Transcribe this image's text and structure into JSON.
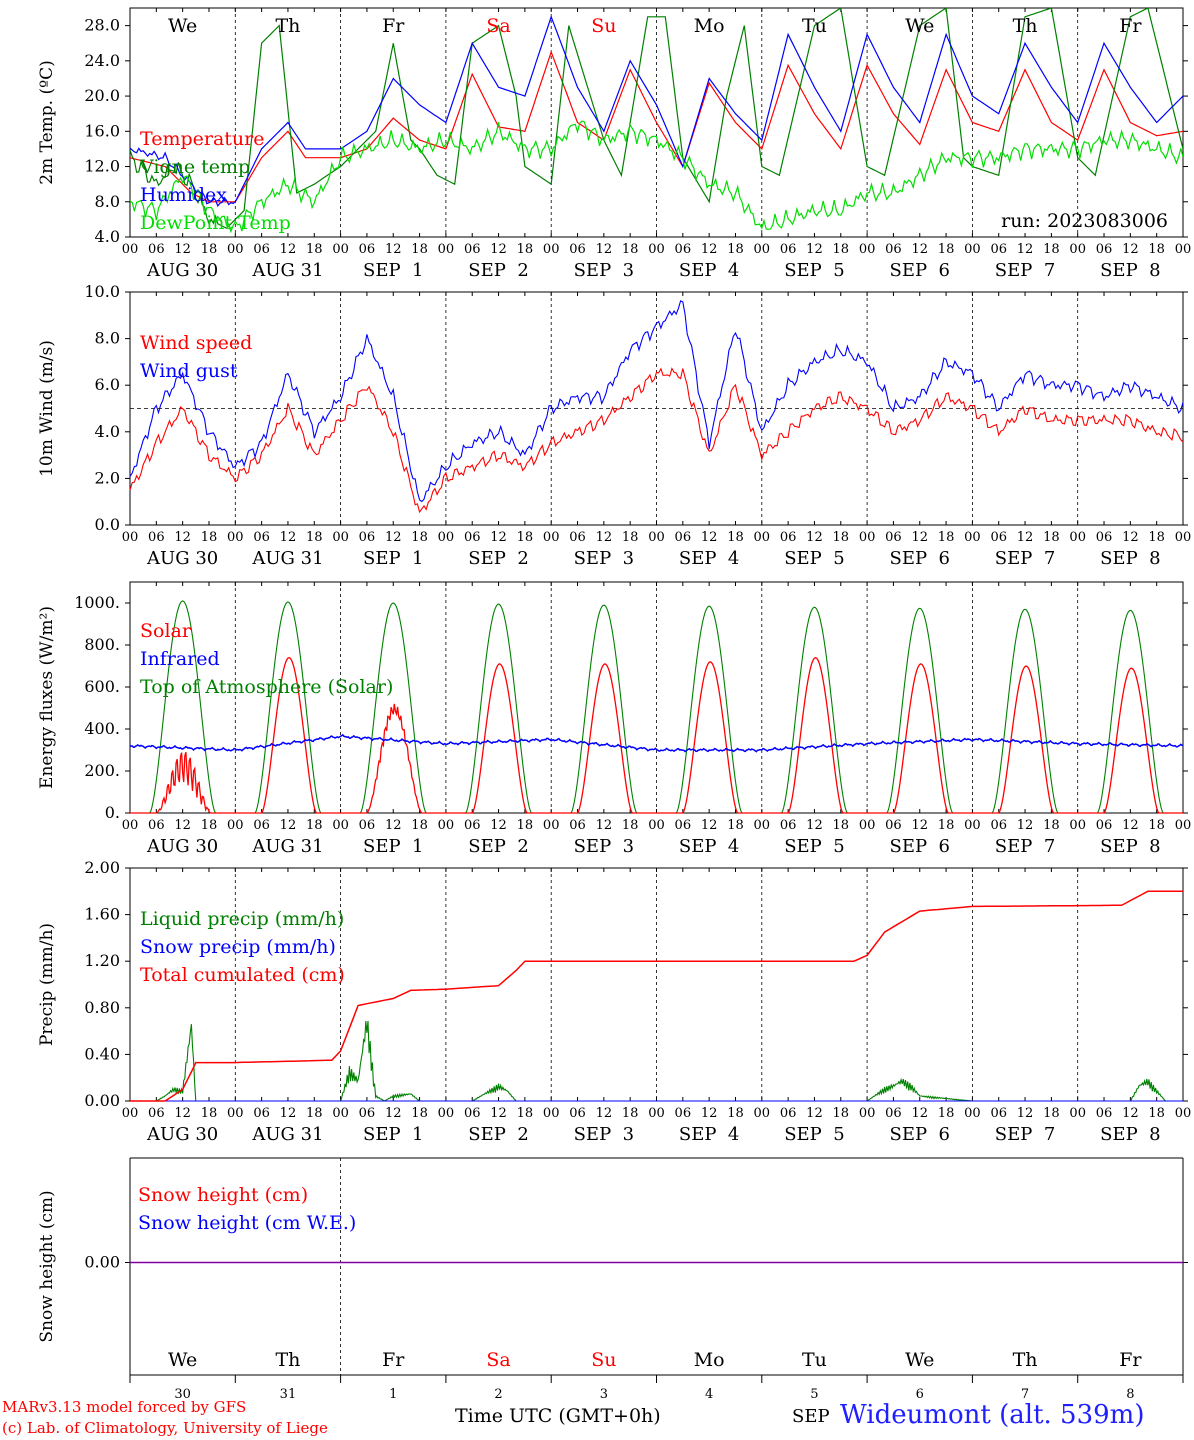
{
  "footer": {
    "model": "MARv3.13 model forced by GFS",
    "copyright": "(c) Lab. of Climatology, University of Liege",
    "xlabel": "Time UTC (GMT+0h)",
    "month": "SEP",
    "station": "Wideumont (alt. 539m)"
  },
  "run_label": "run: 2023083006",
  "hour_ticks": [
    "00",
    "06",
    "12",
    "18"
  ],
  "date_labels": [
    "AUG 30",
    "AUG 31",
    "SEP  1",
    "SEP  2",
    "SEP  3",
    "SEP  4",
    "SEP  5",
    "SEP  6",
    "SEP  7",
    "SEP  8"
  ],
  "day_names": [
    "We",
    "Th",
    "Fr",
    "Sa",
    "Su",
    "Mo",
    "Tu",
    "We",
    "Th",
    "Fr"
  ],
  "day_name_colors": [
    "#000000",
    "#000000",
    "#000000",
    "#ff0000",
    "#ff0000",
    "#000000",
    "#000000",
    "#000000",
    "#000000",
    "#000000"
  ],
  "day_numbers": [
    "30",
    "31",
    "1",
    "2",
    "3",
    "4",
    "5",
    "6",
    "7",
    "8"
  ],
  "colors": {
    "red": "#ff0000",
    "green": "#008000",
    "blue": "#0000ff",
    "lightgreen": "#00dd00",
    "purple": "#8000a0"
  },
  "chart_data": [
    {
      "type": "line",
      "ylabel": "2m Temp. (ºC)",
      "ylim": [
        4.0,
        30.0
      ],
      "yticks": [
        "4.0",
        "8.0",
        "12.0",
        "16.0",
        "20.0",
        "24.0",
        "28.0"
      ],
      "x_unit": "hours since AUG 30 00 UTC",
      "series": [
        {
          "name": "Temperature",
          "color": "red",
          "x": [
            0,
            8,
            14,
            18,
            24,
            30,
            36,
            40,
            48,
            54,
            60,
            66,
            72,
            78,
            84,
            90,
            96,
            102,
            108,
            114,
            120,
            126,
            132,
            138,
            144,
            150,
            156,
            162,
            168,
            174,
            180,
            186,
            192,
            198,
            204,
            210,
            216,
            222,
            228,
            234,
            240
          ],
          "values": [
            13,
            12,
            9,
            8,
            8,
            13,
            16,
            13,
            13,
            14,
            17.5,
            15,
            14,
            22.5,
            16.5,
            16,
            25,
            17,
            15,
            23,
            17,
            12,
            21.5,
            17,
            14,
            23.5,
            18,
            14,
            23.5,
            18,
            14.5,
            23,
            17,
            16,
            23,
            17,
            15,
            23,
            17,
            15.5,
            16
          ]
        },
        {
          "name": "Vigne temp",
          "color": "green",
          "x": [
            0,
            6,
            10,
            14,
            18,
            22,
            26,
            30,
            34,
            38,
            42,
            48,
            50,
            56,
            60,
            64,
            66,
            70,
            74,
            78,
            84,
            88,
            90,
            96,
            100,
            108,
            112,
            118,
            122,
            126,
            132,
            136,
            140,
            144,
            148,
            156,
            162,
            168,
            172,
            180,
            186,
            190,
            192,
            198,
            204,
            210,
            216,
            220,
            228,
            232,
            240
          ],
          "values": [
            13,
            10,
            12,
            10,
            6,
            5,
            7,
            26,
            28,
            9,
            10,
            12,
            13,
            16,
            26,
            15,
            14,
            11,
            10,
            26,
            28,
            20,
            12,
            10,
            28,
            15,
            11,
            29,
            29,
            13,
            8,
            20,
            28,
            12,
            11,
            28,
            30,
            12,
            11,
            28,
            30,
            13,
            12,
            11,
            29,
            30,
            13,
            11,
            29,
            30,
            14
          ]
        },
        {
          "name": "Humidex",
          "color": "blue",
          "x": [
            0,
            8,
            14,
            18,
            24,
            30,
            36,
            40,
            48,
            54,
            60,
            66,
            72,
            78,
            84,
            90,
            96,
            102,
            108,
            114,
            120,
            126,
            132,
            138,
            144,
            150,
            156,
            162,
            168,
            174,
            180,
            186,
            192,
            198,
            204,
            210,
            216,
            222,
            228,
            234,
            240
          ],
          "values": [
            14,
            13,
            10,
            8,
            8,
            14,
            17,
            14,
            14,
            16,
            22,
            19,
            17,
            26,
            21,
            20,
            29,
            21,
            16,
            24,
            19,
            12,
            22,
            18,
            15,
            27,
            21,
            16,
            27,
            21,
            17,
            27,
            20,
            18,
            26,
            21,
            17,
            26,
            21,
            17,
            20
          ]
        },
        {
          "name": "DewPoint Temp",
          "color": "lightgreen",
          "x": [
            0,
            6,
            12,
            18,
            24,
            30,
            36,
            42,
            48,
            54,
            60,
            66,
            72,
            78,
            84,
            90,
            96,
            102,
            108,
            114,
            120,
            126,
            132,
            138,
            144,
            150,
            156,
            162,
            168,
            174,
            180,
            186,
            192,
            198,
            204,
            210,
            216,
            222,
            228,
            234,
            240
          ],
          "values": [
            8,
            7,
            11,
            7,
            5,
            8,
            10,
            8,
            13,
            14,
            15,
            14,
            15,
            14,
            16,
            14,
            14,
            17,
            15,
            16,
            15,
            13,
            10,
            9,
            5,
            6,
            7,
            7,
            9,
            9,
            11,
            13,
            13,
            13,
            14,
            14,
            14,
            15,
            15,
            14,
            13
          ]
        }
      ]
    },
    {
      "type": "line",
      "ylabel": "10m Wind (m/s)",
      "ylim": [
        0.0,
        10.0
      ],
      "yticks": [
        "0.0",
        "2.0",
        "4.0",
        "6.0",
        "8.0",
        "10.0"
      ],
      "reference_line": 5.0,
      "x_unit": "hours since AUG 30 00 UTC",
      "series": [
        {
          "name": "Wind speed",
          "color": "red",
          "x": [
            0,
            6,
            12,
            18,
            24,
            30,
            36,
            42,
            48,
            54,
            60,
            66,
            72,
            78,
            84,
            90,
            96,
            102,
            108,
            114,
            120,
            126,
            132,
            138,
            144,
            150,
            156,
            162,
            168,
            174,
            180,
            186,
            192,
            198,
            204,
            210,
            216,
            222,
            228,
            234,
            240
          ],
          "values": [
            1.5,
            3.5,
            5.0,
            3.0,
            2.0,
            3.0,
            5.0,
            3.0,
            4.5,
            6.0,
            4.0,
            0.5,
            2.0,
            2.5,
            3.0,
            2.5,
            3.5,
            4.0,
            4.5,
            5.5,
            6.5,
            6.5,
            3.0,
            6.0,
            3.0,
            4.0,
            5.0,
            5.5,
            5.0,
            4.0,
            4.5,
            5.5,
            5.0,
            4.0,
            5.0,
            4.5,
            4.5,
            4.5,
            4.5,
            4.0,
            3.8
          ]
        },
        {
          "name": "Wind gust",
          "color": "blue",
          "x": [
            0,
            6,
            12,
            18,
            24,
            30,
            36,
            42,
            48,
            54,
            60,
            66,
            72,
            78,
            84,
            90,
            96,
            102,
            108,
            114,
            120,
            126,
            132,
            138,
            144,
            150,
            156,
            162,
            168,
            174,
            180,
            186,
            192,
            198,
            204,
            210,
            216,
            222,
            228,
            234,
            240
          ],
          "values": [
            2.0,
            5.0,
            6.5,
            4.0,
            2.5,
            3.5,
            6.5,
            4.0,
            5.5,
            8.0,
            5.5,
            1.0,
            2.5,
            3.5,
            4.0,
            3.0,
            5.0,
            5.5,
            5.5,
            7.5,
            8.5,
            9.5,
            3.5,
            8.5,
            4.0,
            6.0,
            7.0,
            7.5,
            7.0,
            5.0,
            5.5,
            7.0,
            6.5,
            5.0,
            6.5,
            6.0,
            6.0,
            5.5,
            6.0,
            5.5,
            5.0
          ]
        }
      ]
    },
    {
      "type": "line",
      "ylabel": "Energy fluxes (W/m²)",
      "ylim": [
        0,
        1100
      ],
      "yticks": [
        "0.",
        "200.",
        "400.",
        "600.",
        "800.",
        "1000."
      ],
      "x_unit": "hours since AUG 30 00 UTC",
      "daily_peaks": {
        "solar": [
          300,
          740,
          520,
          710,
          710,
          720,
          740,
          710,
          700,
          690
        ],
        "top_of_atmosphere": [
          1010,
          1005,
          1000,
          995,
          990,
          985,
          980,
          975,
          970,
          965
        ],
        "infrared_mean": [
          320,
          300,
          365,
          330,
          350,
          300,
          300,
          330,
          350,
          330
        ]
      },
      "series": [
        {
          "name": "Solar",
          "color": "red"
        },
        {
          "name": "Infrared",
          "color": "blue"
        },
        {
          "name": "Top of Atmosphere (Solar)",
          "color": "green"
        }
      ]
    },
    {
      "type": "line",
      "ylabel": "Precip (mm/h)",
      "ylim": [
        0.0,
        2.0
      ],
      "yticks": [
        "0.00",
        "0.40",
        "0.80",
        "1.20",
        "1.60",
        "2.00"
      ],
      "x_unit": "hours since AUG 30 00 UTC",
      "series": [
        {
          "name": "Liquid precip (mm/h)",
          "color": "green",
          "x": [
            0,
            6,
            8,
            10,
            12,
            14,
            15,
            16,
            18,
            24,
            48,
            50,
            52,
            54,
            56,
            58,
            60,
            64,
            66,
            70,
            72,
            78,
            82,
            84,
            86,
            88,
            90,
            96,
            168,
            172,
            174,
            176,
            178,
            180,
            192,
            228,
            230,
            232,
            234,
            236,
            240
          ],
          "values": [
            0,
            0,
            0.05,
            0.12,
            0.1,
            0.75,
            0,
            0,
            0,
            0,
            0,
            0.3,
            0.2,
            0.8,
            0.05,
            0,
            0.05,
            0.07,
            0,
            0,
            0,
            0,
            0.1,
            0.15,
            0.1,
            0,
            0,
            0,
            0,
            0.12,
            0.15,
            0.2,
            0.15,
            0.05,
            0,
            0,
            0.15,
            0.2,
            0.1,
            0,
            0
          ]
        },
        {
          "name": "Snow precip (mm/h)",
          "color": "blue",
          "x": [
            0,
            240
          ],
          "values": [
            0,
            0
          ]
        },
        {
          "name": "Total cumulated (cm)",
          "color": "red",
          "x": [
            0,
            8,
            12,
            14,
            15,
            24,
            46,
            48,
            52,
            56,
            60,
            64,
            72,
            84,
            88,
            90,
            96,
            144,
            165,
            168,
            172,
            180,
            192,
            226,
            232,
            240
          ],
          "values": [
            0,
            0,
            0.1,
            0.25,
            0.33,
            0.33,
            0.35,
            0.43,
            0.82,
            0.85,
            0.88,
            0.95,
            0.96,
            0.99,
            1.12,
            1.2,
            1.2,
            1.2,
            1.2,
            1.25,
            1.45,
            1.63,
            1.67,
            1.68,
            1.8,
            1.8
          ]
        }
      ]
    },
    {
      "type": "line",
      "ylabel": "Snow height (cm)",
      "ylim": [
        -1.0,
        1.0
      ],
      "yticks": [
        "0.00"
      ],
      "x_unit": "hours since AUG 30 00 UTC",
      "series": [
        {
          "name": "Snow height (cm)",
          "color": "red",
          "x": [
            0,
            240
          ],
          "values": [
            0,
            0
          ]
        },
        {
          "name": "Snow height (cm W.E.)",
          "color": "blue",
          "x": [
            0,
            240
          ],
          "values": [
            0,
            0
          ]
        }
      ]
    }
  ]
}
